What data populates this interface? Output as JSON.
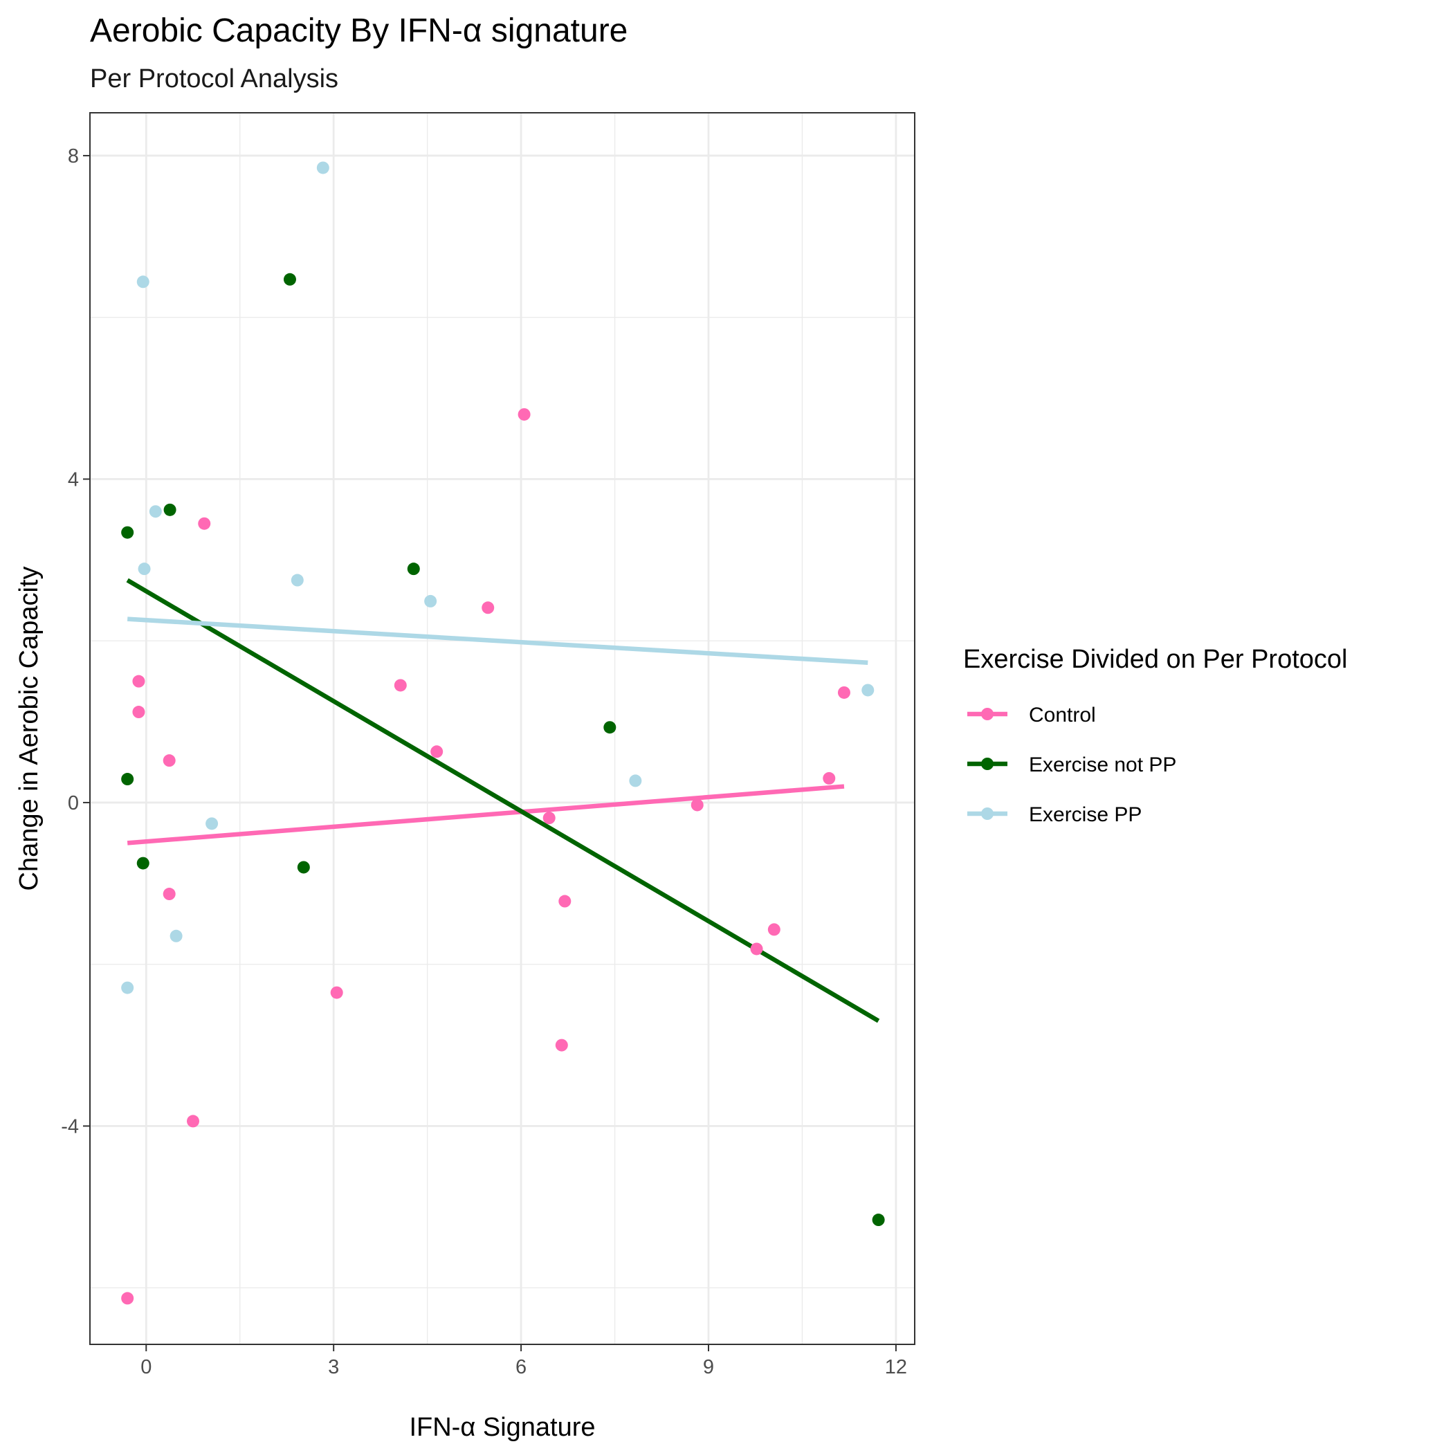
{
  "chart_data": {
    "type": "scatter",
    "title": "Aerobic Capacity By IFN-α signature",
    "subtitle": "Per Protocol Analysis",
    "xlabel": "IFN-α Signature",
    "ylabel": "Change in Aerobic Capacity",
    "xlim": [
      -0.9,
      12.3
    ],
    "ylim": [
      -6.7,
      8.53
    ],
    "x_ticks": [
      0,
      3,
      6,
      9,
      12
    ],
    "y_ticks": [
      -4,
      0,
      4,
      8
    ],
    "grid": true,
    "legend": {
      "title": "Exercise Divided on Per Protocol",
      "position": "right"
    },
    "series": [
      {
        "name": "Control",
        "color": "#FF69B4",
        "points": [
          [
            -0.3,
            -6.13
          ],
          [
            -0.12,
            1.5
          ],
          [
            -0.12,
            1.12
          ],
          [
            0.37,
            0.52
          ],
          [
            0.37,
            -1.13
          ],
          [
            0.93,
            3.45
          ],
          [
            0.75,
            -3.94
          ],
          [
            3.05,
            -2.35
          ],
          [
            4.07,
            1.45
          ],
          [
            4.65,
            0.63
          ],
          [
            5.47,
            2.41
          ],
          [
            6.05,
            4.8
          ],
          [
            6.45,
            -0.19
          ],
          [
            6.7,
            -1.22
          ],
          [
            6.65,
            -3.0
          ],
          [
            8.82,
            -0.03
          ],
          [
            9.77,
            -1.81
          ],
          [
            10.05,
            -1.57
          ],
          [
            10.93,
            0.3
          ],
          [
            11.17,
            1.36
          ]
        ],
        "fit": [
          [
            -0.3,
            -0.5
          ],
          [
            11.17,
            0.2
          ]
        ]
      },
      {
        "name": "Exercise not PP",
        "color": "#006400",
        "points": [
          [
            -0.3,
            3.34
          ],
          [
            -0.3,
            0.29
          ],
          [
            -0.05,
            -0.75
          ],
          [
            0.38,
            3.62
          ],
          [
            2.3,
            6.47
          ],
          [
            2.52,
            -0.8
          ],
          [
            4.28,
            2.89
          ],
          [
            7.42,
            0.93
          ],
          [
            11.72,
            -5.16
          ]
        ],
        "fit": [
          [
            -0.3,
            2.75
          ],
          [
            11.72,
            -2.7
          ]
        ]
      },
      {
        "name": "Exercise PP",
        "color": "#ADD8E6",
        "points": [
          [
            -0.05,
            6.44
          ],
          [
            -0.03,
            2.89
          ],
          [
            0.15,
            3.6
          ],
          [
            -0.3,
            -2.29
          ],
          [
            0.48,
            -1.65
          ],
          [
            1.05,
            -0.26
          ],
          [
            2.42,
            2.75
          ],
          [
            2.83,
            7.85
          ],
          [
            4.55,
            2.49
          ],
          [
            7.83,
            0.27
          ],
          [
            11.55,
            1.39
          ]
        ],
        "fit": [
          [
            -0.3,
            2.27
          ],
          [
            11.55,
            1.73
          ]
        ]
      }
    ]
  }
}
